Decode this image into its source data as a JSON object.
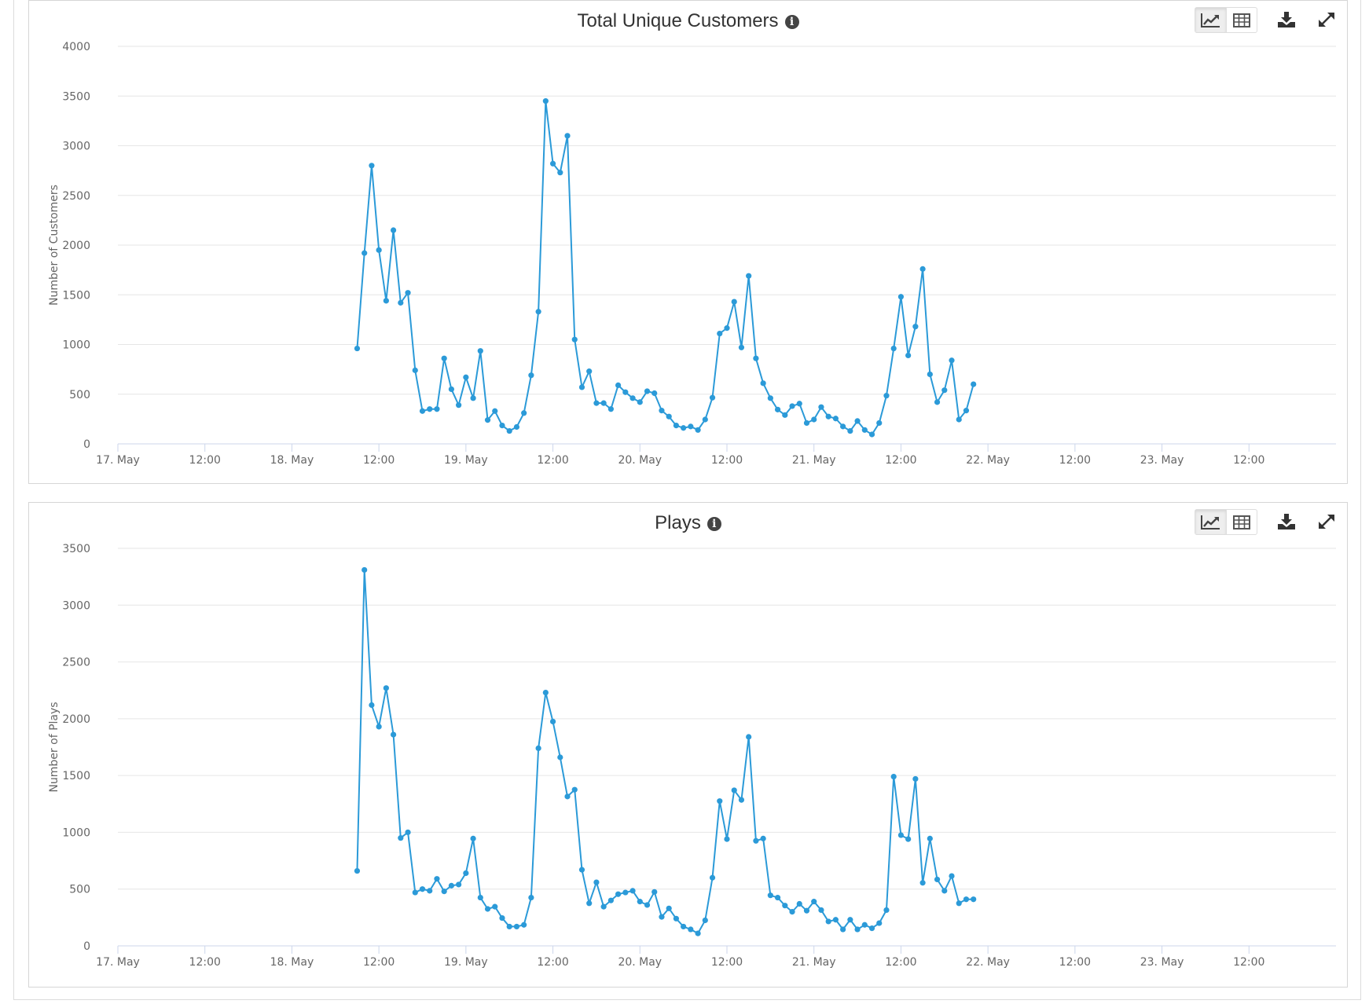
{
  "charts_ui": {
    "toolbar": {
      "chart_view": "line-chart-icon",
      "table_view": "table-icon",
      "download": "download-icon",
      "expand": "expand-icon"
    },
    "line_color": "#2b9ad8"
  },
  "chart_data": [
    {
      "type": "line",
      "title": "Total Unique Customers",
      "title_icon": "info-icon",
      "ylabel": "Number of Customers",
      "xlabel": "",
      "ylim": [
        0,
        4000
      ],
      "yticks": [
        "0",
        "500",
        "1000",
        "1500",
        "2000",
        "2500",
        "3000",
        "3500",
        "4000"
      ],
      "xlim": [
        "17 May 00:00",
        "24 May 00:00"
      ],
      "xticks": [
        "17. May",
        "12:00",
        "18. May",
        "12:00",
        "19. May",
        "12:00",
        "20. May",
        "12:00",
        "21. May",
        "12:00",
        "22. May",
        "12:00",
        "23. May",
        "12:00"
      ],
      "grid": true,
      "legend": "none",
      "x": [
        "18 May 09:00",
        "18 May 10:00",
        "18 May 11:00",
        "18 May 12:00",
        "18 May 13:00",
        "18 May 14:00",
        "18 May 15:00",
        "18 May 16:00",
        "18 May 17:00",
        "18 May 18:00",
        "18 May 19:00",
        "18 May 20:00",
        "18 May 21:00",
        "18 May 22:00",
        "18 May 23:00",
        "19 May 00:00",
        "19 May 01:00",
        "19 May 02:00",
        "19 May 03:00",
        "19 May 04:00",
        "19 May 05:00",
        "19 May 06:00",
        "19 May 07:00",
        "19 May 08:00",
        "19 May 09:00",
        "19 May 10:00",
        "19 May 11:00",
        "19 May 12:00",
        "19 May 13:00",
        "19 May 14:00",
        "19 May 15:00",
        "19 May 16:00",
        "19 May 17:00",
        "19 May 18:00",
        "19 May 19:00",
        "19 May 20:00",
        "19 May 21:00",
        "19 May 22:00",
        "19 May 23:00",
        "20 May 00:00",
        "20 May 01:00",
        "20 May 02:00",
        "20 May 03:00",
        "20 May 04:00",
        "20 May 05:00",
        "20 May 06:00",
        "20 May 07:00",
        "20 May 08:00",
        "20 May 09:00",
        "20 May 10:00",
        "20 May 11:00",
        "20 May 12:00",
        "20 May 13:00",
        "20 May 14:00",
        "20 May 15:00",
        "20 May 16:00",
        "20 May 17:00",
        "20 May 18:00",
        "20 May 19:00",
        "20 May 20:00",
        "20 May 21:00",
        "20 May 22:00",
        "20 May 23:00",
        "21 May 00:00",
        "21 May 01:00",
        "21 May 02:00",
        "21 May 03:00",
        "21 May 04:00",
        "21 May 05:00",
        "21 May 06:00",
        "21 May 07:00",
        "21 May 08:00",
        "21 May 09:00",
        "21 May 10:00",
        "21 May 11:00",
        "21 May 12:00",
        "21 May 13:00",
        "21 May 14:00",
        "21 May 15:00",
        "21 May 16:00",
        "21 May 17:00",
        "21 May 18:00",
        "21 May 19:00",
        "21 May 20:00",
        "21 May 21:00",
        "21 May 22:00"
      ],
      "values": [
        960,
        1920,
        2800,
        1950,
        1440,
        2150,
        1420,
        1520,
        740,
        330,
        350,
        350,
        860,
        550,
        390,
        670,
        460,
        935,
        240,
        330,
        185,
        130,
        170,
        310,
        690,
        1330,
        3450,
        2820,
        2730,
        3100,
        1050,
        570,
        730,
        410,
        410,
        350,
        590,
        520,
        460,
        420,
        530,
        510,
        335,
        275,
        185,
        160,
        175,
        140,
        245,
        465,
        1110,
        1165,
        1430,
        970,
        1690,
        860,
        610,
        460,
        345,
        290,
        380,
        405,
        210,
        245,
        370,
        275,
        255,
        175,
        130,
        230,
        140,
        95,
        210,
        485,
        960,
        1480,
        890,
        1180,
        1760,
        700,
        420,
        540,
        840,
        245,
        335,
        600
      ]
    },
    {
      "type": "line",
      "title": "Plays",
      "title_icon": "info-icon",
      "ylabel": "Number of Plays",
      "xlabel": "",
      "ylim": [
        0,
        3500
      ],
      "yticks": [
        "0",
        "500",
        "1000",
        "1500",
        "2000",
        "2500",
        "3000",
        "3500"
      ],
      "xlim": [
        "17 May 00:00",
        "24 May 00:00"
      ],
      "xticks": [
        "17. May",
        "12:00",
        "18. May",
        "12:00",
        "19. May",
        "12:00",
        "20. May",
        "12:00",
        "21. May",
        "12:00",
        "22. May",
        "12:00",
        "23. May",
        "12:00"
      ],
      "grid": true,
      "legend": "none",
      "x": [
        "18 May 09:00",
        "18 May 10:00",
        "18 May 11:00",
        "18 May 12:00",
        "18 May 13:00",
        "18 May 14:00",
        "18 May 15:00",
        "18 May 16:00",
        "18 May 17:00",
        "18 May 18:00",
        "18 May 19:00",
        "18 May 20:00",
        "18 May 21:00",
        "18 May 22:00",
        "18 May 23:00",
        "19 May 00:00",
        "19 May 01:00",
        "19 May 02:00",
        "19 May 03:00",
        "19 May 04:00",
        "19 May 05:00",
        "19 May 06:00",
        "19 May 07:00",
        "19 May 08:00",
        "19 May 09:00",
        "19 May 10:00",
        "19 May 11:00",
        "19 May 12:00",
        "19 May 13:00",
        "19 May 14:00",
        "19 May 15:00",
        "19 May 16:00",
        "19 May 17:00",
        "19 May 18:00",
        "19 May 19:00",
        "19 May 20:00",
        "19 May 21:00",
        "19 May 22:00",
        "19 May 23:00",
        "20 May 00:00",
        "20 May 01:00",
        "20 May 02:00",
        "20 May 03:00",
        "20 May 04:00",
        "20 May 05:00",
        "20 May 06:00",
        "20 May 07:00",
        "20 May 08:00",
        "20 May 09:00",
        "20 May 10:00",
        "20 May 11:00",
        "20 May 12:00",
        "20 May 13:00",
        "20 May 14:00",
        "20 May 15:00",
        "20 May 16:00",
        "20 May 17:00",
        "20 May 18:00",
        "20 May 19:00",
        "20 May 20:00",
        "20 May 21:00",
        "20 May 22:00",
        "20 May 23:00",
        "21 May 00:00",
        "21 May 01:00",
        "21 May 02:00",
        "21 May 03:00",
        "21 May 04:00",
        "21 May 05:00",
        "21 May 06:00",
        "21 May 07:00",
        "21 May 08:00",
        "21 May 09:00",
        "21 May 10:00",
        "21 May 11:00",
        "21 May 12:00",
        "21 May 13:00",
        "21 May 14:00",
        "21 May 15:00",
        "21 May 16:00",
        "21 May 17:00",
        "21 May 18:00",
        "21 May 19:00",
        "21 May 20:00",
        "21 May 21:00",
        "21 May 22:00"
      ],
      "values": [
        660,
        3310,
        2120,
        1930,
        2270,
        1860,
        950,
        1000,
        470,
        500,
        485,
        590,
        480,
        530,
        540,
        640,
        945,
        425,
        325,
        345,
        245,
        170,
        170,
        185,
        425,
        1740,
        2230,
        1975,
        1660,
        1315,
        1375,
        670,
        375,
        560,
        345,
        400,
        455,
        470,
        485,
        390,
        360,
        475,
        255,
        330,
        240,
        170,
        145,
        110,
        225,
        600,
        1275,
        940,
        1370,
        1285,
        1840,
        925,
        945,
        445,
        425,
        355,
        300,
        370,
        310,
        390,
        315,
        215,
        230,
        145,
        230,
        145,
        185,
        155,
        200,
        315,
        1490,
        975,
        940,
        1470,
        555,
        945,
        585,
        485,
        615,
        375,
        410,
        410
      ]
    }
  ]
}
